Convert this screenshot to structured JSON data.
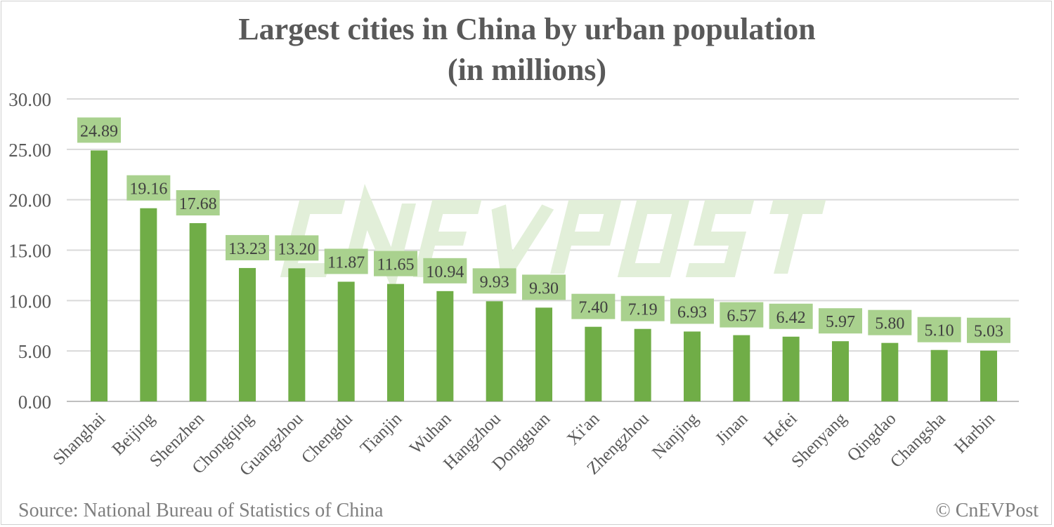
{
  "chart_data": {
    "type": "bar",
    "title": [
      "Largest cities in China by urban population",
      "(in millions)"
    ],
    "categories": [
      "Shanghai",
      "Beijing",
      "Shenzhen",
      "Chongqing",
      "Guangzhou",
      "Chengdu",
      "Tianjin",
      "Wuhan",
      "Hangzhou",
      "Dongguan",
      "Xi'an",
      "Zhengzhou",
      "Nanjing",
      "Jinan",
      "Hefei",
      "Shenyang",
      "Qingdao",
      "Changsha",
      "Harbin"
    ],
    "values": [
      24.89,
      19.16,
      17.68,
      13.23,
      13.2,
      11.87,
      11.65,
      10.94,
      9.93,
      9.3,
      7.4,
      7.19,
      6.93,
      6.57,
      6.42,
      5.97,
      5.8,
      5.1,
      5.03
    ],
    "ylim": [
      0,
      30
    ],
    "yticks": [
      "0.00",
      "5.00",
      "10.00",
      "15.00",
      "20.00",
      "25.00",
      "30.00"
    ],
    "grid": true,
    "legend": "none",
    "colors": {
      "bar": "#70ad47",
      "label_box": "#a9d18e",
      "watermark": "#e2efd9"
    }
  },
  "watermark": "CNEVPOST",
  "source": "Source: National Bureau of Statistics of China",
  "credit": "© CnEVPost"
}
